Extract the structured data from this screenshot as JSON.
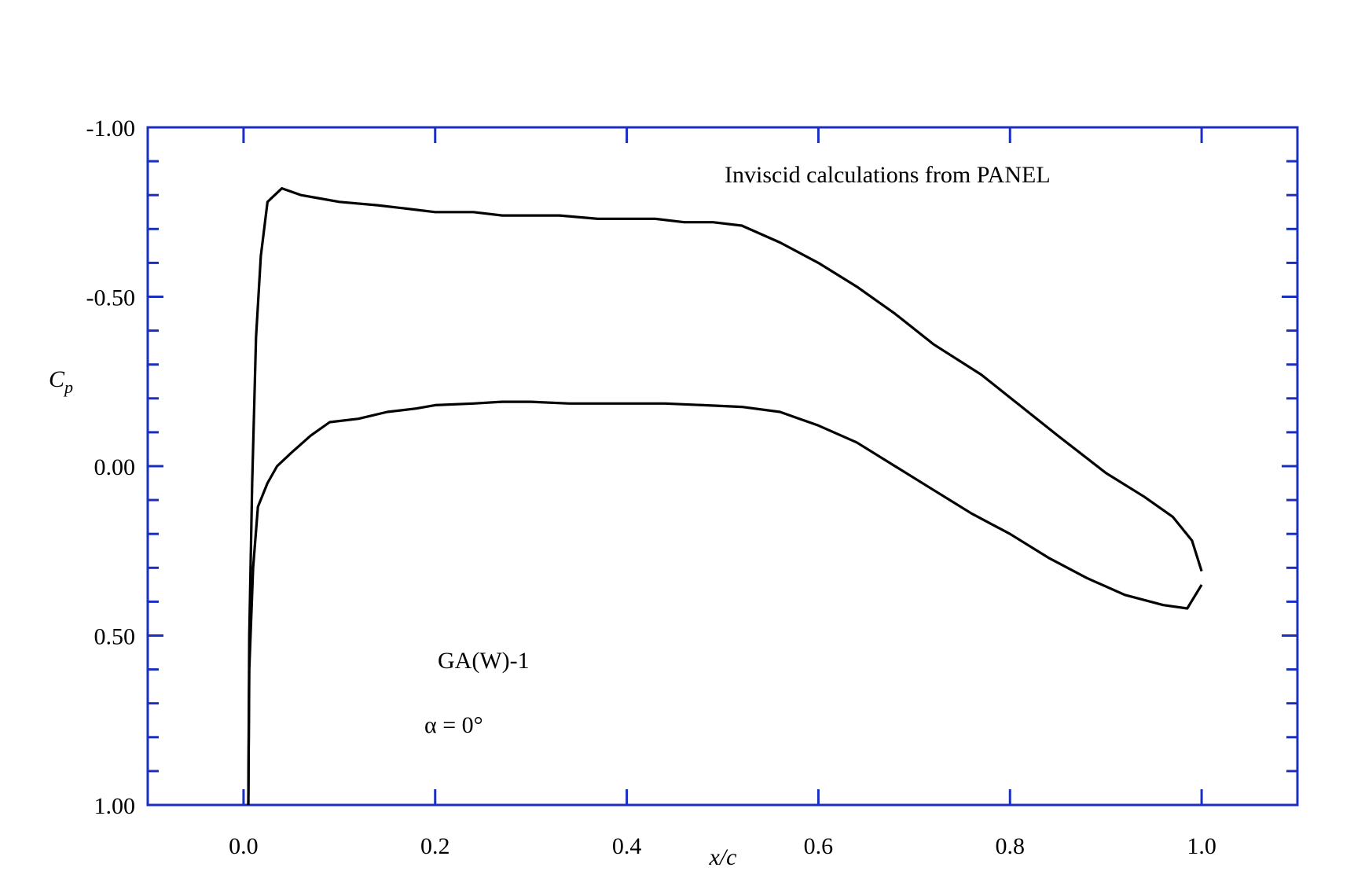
{
  "chart_data": {
    "type": "line",
    "title": "",
    "xlabel": "x/c",
    "ylabel": "C",
    "ylabel_sub": "p",
    "xlim": [
      -0.1,
      1.1
    ],
    "ylim": [
      1.0,
      -1.0
    ],
    "y_inverted": true,
    "x_ticks": [
      0.0,
      0.2,
      0.4,
      0.6,
      0.8,
      1.0
    ],
    "x_tick_labels": [
      "0.0",
      "0.2",
      "0.4",
      "0.6",
      "0.8",
      "1.0"
    ],
    "y_ticks": [
      -1.0,
      -0.5,
      0.0,
      0.5,
      1.0
    ],
    "y_tick_labels": [
      "-1.00",
      "-0.50",
      "0.00",
      "0.50",
      "1.00"
    ],
    "grid": false,
    "frame_color": "#1a2fc0",
    "line_color": "#000000",
    "annotations": {
      "source": "Inviscid calculations from PANEL",
      "airfoil": "GA(W)-1",
      "alpha": "α = 0°"
    },
    "series": [
      {
        "x": [
          0.005,
          0.006,
          0.009,
          0.013,
          0.018,
          0.025,
          0.04,
          0.06,
          0.08,
          0.1,
          0.14,
          0.17,
          0.2,
          0.24,
          0.27,
          0.3,
          0.33,
          0.37,
          0.4,
          0.43,
          0.46,
          0.49,
          0.52,
          0.56,
          0.6,
          0.64,
          0.68,
          0.72,
          0.77,
          0.81,
          0.85,
          0.9,
          0.94,
          0.97,
          0.99,
          1.0
        ],
        "values": [
          1.0,
          0.5,
          0.05,
          -0.38,
          -0.62,
          -0.78,
          -0.82,
          -0.8,
          -0.79,
          -0.78,
          -0.77,
          -0.76,
          -0.75,
          -0.75,
          -0.74,
          -0.74,
          -0.74,
          -0.73,
          -0.73,
          -0.73,
          -0.72,
          -0.72,
          -0.71,
          -0.66,
          -0.6,
          -0.53,
          -0.45,
          -0.36,
          -0.27,
          -0.18,
          -0.09,
          0.02,
          0.09,
          0.15,
          0.22,
          0.31
        ]
      },
      {
        "x": [
          0.005,
          0.006,
          0.01,
          0.015,
          0.025,
          0.035,
          0.05,
          0.07,
          0.09,
          0.12,
          0.15,
          0.18,
          0.2,
          0.24,
          0.27,
          0.3,
          0.34,
          0.37,
          0.4,
          0.44,
          0.48,
          0.52,
          0.56,
          0.6,
          0.64,
          0.68,
          0.72,
          0.76,
          0.8,
          0.84,
          0.88,
          0.92,
          0.96,
          0.985,
          1.0
        ],
        "values": [
          1.0,
          0.6,
          0.3,
          0.12,
          0.05,
          0.0,
          -0.04,
          -0.09,
          -0.13,
          -0.14,
          -0.16,
          -0.17,
          -0.18,
          -0.185,
          -0.19,
          -0.19,
          -0.185,
          -0.185,
          -0.185,
          -0.185,
          -0.18,
          -0.175,
          -0.16,
          -0.12,
          -0.07,
          0.0,
          0.07,
          0.14,
          0.2,
          0.27,
          0.33,
          0.38,
          0.41,
          0.42,
          0.35
        ]
      }
    ]
  }
}
